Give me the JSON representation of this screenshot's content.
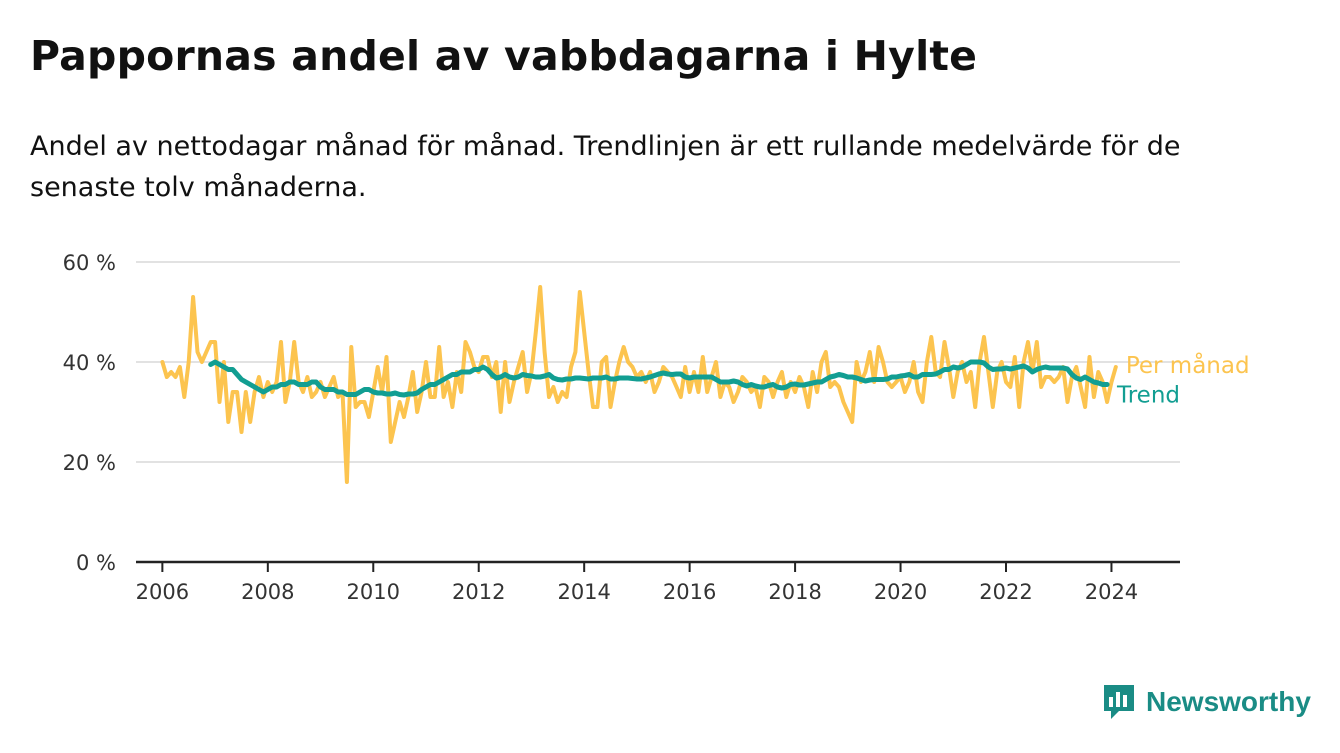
{
  "title": "Pappornas andel av vabbdagarna i Hylte",
  "subtitle": "Andel av nettodagar månad för månad. Trendlinjen är ett rullande medelvärde för de senaste tolv månaderna.",
  "brand": {
    "name": "Newsworthy",
    "icon": "newsworthy-logo-icon"
  },
  "colors": {
    "monthly": "#fcc44f",
    "trend": "#129e92",
    "grid": "#d9d9d9",
    "axis": "#222222"
  },
  "chart_data": {
    "type": "line",
    "title": "Pappornas andel av vabbdagarna i Hylte",
    "xlabel": "",
    "ylabel": "",
    "xlim": [
      2005.5,
      2025.3
    ],
    "ylim": [
      0,
      60
    ],
    "y_ticks": [
      0,
      20,
      40,
      60
    ],
    "y_tick_labels": [
      "0 %",
      "20 %",
      "40 %",
      "60 %"
    ],
    "x_ticks": [
      2006,
      2008,
      2010,
      2012,
      2014,
      2016,
      2018,
      2020,
      2022,
      2024
    ],
    "x_tick_labels": [
      "2006",
      "2008",
      "2010",
      "2012",
      "2014",
      "2016",
      "2018",
      "2020",
      "2022",
      "2024"
    ],
    "grid": true,
    "legend": "end-of-line labels (right)",
    "series": [
      {
        "name": "Per månad",
        "color": "#fcc44f",
        "start": "2006-01",
        "frequency": "monthly",
        "values": [
          40,
          37,
          38,
          37,
          39,
          33,
          40,
          53,
          42,
          40,
          42,
          44,
          44,
          32,
          40,
          28,
          34,
          34,
          26,
          34,
          28,
          34,
          37,
          33,
          36,
          34,
          36,
          44,
          32,
          36,
          44,
          36,
          34,
          37,
          33,
          34,
          36,
          33,
          35,
          37,
          33,
          34,
          16,
          43,
          31,
          32,
          32,
          29,
          34,
          39,
          34,
          41,
          24,
          28,
          32,
          29,
          33,
          38,
          30,
          34,
          40,
          33,
          33,
          43,
          33,
          36,
          31,
          38,
          34,
          44,
          42,
          39,
          38,
          41,
          41,
          37,
          40,
          30,
          40,
          32,
          36,
          39,
          42,
          34,
          38,
          46,
          55,
          42,
          33,
          35,
          32,
          34,
          33,
          39,
          42,
          54,
          46,
          38,
          31,
          31,
          40,
          41,
          31,
          36,
          40,
          43,
          40,
          39,
          37,
          38,
          36,
          38,
          34,
          36,
          39,
          38,
          37,
          35,
          33,
          39,
          34,
          38,
          34,
          41,
          34,
          37,
          40,
          33,
          36,
          35,
          32,
          34,
          37,
          36,
          34,
          35,
          31,
          37,
          36,
          33,
          36,
          38,
          33,
          36,
          34,
          37,
          35,
          31,
          38,
          34,
          40,
          42,
          35,
          36,
          35,
          32,
          30,
          28,
          40,
          36,
          38,
          42,
          36,
          43,
          40,
          36,
          35,
          36,
          37,
          34,
          36,
          40,
          34,
          32,
          40,
          45,
          38,
          37,
          44,
          39,
          33,
          38,
          40,
          36,
          38,
          31,
          40,
          45,
          38,
          31,
          38,
          40,
          36,
          35,
          41,
          31,
          40,
          44,
          38,
          44,
          35,
          37,
          37,
          36,
          37,
          39,
          32,
          37,
          39,
          35,
          31,
          41,
          33,
          38,
          36,
          32,
          36,
          39
        ]
      },
      {
        "name": "Trend",
        "color": "#129e92",
        "start": "2006-12",
        "frequency": "monthly",
        "values": [
          39.5,
          40.0,
          39.5,
          39.0,
          38.5,
          38.5,
          37.5,
          36.5,
          36.0,
          35.5,
          35.0,
          34.5,
          34.0,
          34.5,
          35.0,
          35.0,
          35.5,
          35.5,
          36.0,
          36.0,
          35.5,
          35.5,
          35.5,
          36.0,
          36.0,
          35.0,
          34.5,
          34.5,
          34.5,
          34.0,
          34.0,
          33.5,
          33.5,
          33.5,
          34.0,
          34.5,
          34.5,
          34.0,
          33.8,
          33.8,
          33.6,
          33.6,
          33.8,
          33.5,
          33.4,
          33.6,
          33.6,
          33.8,
          34.5,
          35.0,
          35.5,
          35.5,
          36.0,
          36.5,
          37.0,
          37.5,
          37.5,
          38.0,
          38.0,
          38.0,
          38.5,
          38.5,
          39.0,
          38.5,
          37.5,
          36.8,
          37.0,
          37.5,
          37.0,
          36.8,
          37.0,
          37.5,
          37.3,
          37.2,
          37.0,
          37.0,
          37.2,
          37.5,
          36.8,
          36.5,
          36.4,
          36.6,
          36.6,
          36.8,
          36.8,
          36.7,
          36.6,
          36.8,
          36.8,
          36.8,
          37.0,
          36.6,
          36.6,
          36.8,
          36.8,
          36.8,
          36.7,
          36.6,
          36.6,
          36.8,
          37.0,
          37.3,
          37.6,
          37.8,
          37.6,
          37.5,
          37.6,
          37.6,
          37.0,
          36.8,
          37.0,
          37.0,
          37.0,
          37.0,
          37.0,
          36.5,
          36.0,
          36.0,
          36.0,
          36.2,
          36.0,
          35.5,
          35.2,
          35.5,
          35.2,
          35.0,
          35.0,
          35.3,
          35.5,
          35.0,
          34.8,
          35.0,
          35.5,
          35.6,
          35.4,
          35.4,
          35.6,
          35.8,
          36.0,
          36.0,
          36.5,
          37.0,
          37.2,
          37.5,
          37.3,
          37.0,
          37.0,
          36.8,
          36.5,
          36.2,
          36.4,
          36.5,
          36.5,
          36.5,
          36.6,
          37.0,
          37.0,
          37.2,
          37.3,
          37.5,
          37.0,
          37.0,
          37.5,
          37.5,
          37.5,
          37.6,
          38.0,
          38.5,
          38.5,
          39.0,
          38.8,
          39.0,
          39.5,
          40.0,
          40.0,
          40.0,
          39.8,
          39.0,
          38.5,
          38.6,
          38.6,
          38.8,
          38.6,
          38.8,
          39.0,
          39.2,
          38.8,
          38.0,
          38.5,
          38.8,
          39.0,
          38.8,
          38.8,
          38.8,
          38.8,
          38.6,
          37.5,
          36.8,
          36.5,
          37.0,
          36.5,
          36.0,
          35.8,
          35.5,
          35.5
        ]
      }
    ]
  }
}
